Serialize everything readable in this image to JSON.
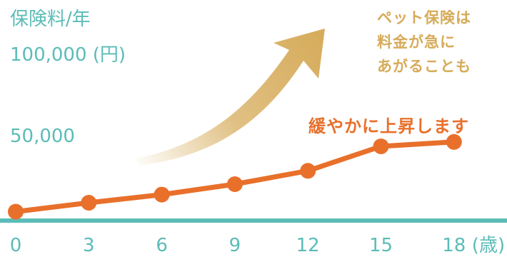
{
  "chart_data": {
    "type": "line",
    "title": "保険料/年",
    "ylabel": "",
    "xlabel": "(歳)",
    "x": [
      0,
      3,
      6,
      9,
      12,
      15,
      18
    ],
    "x_tick_labels": [
      "0",
      "3",
      "6",
      "9",
      "12",
      "15",
      "18"
    ],
    "y_tick_labels": [
      "100,000 (円)",
      "50,000"
    ],
    "y_ticks": [
      100000,
      50000
    ],
    "ylim": [
      0,
      125000
    ],
    "series": [
      {
        "values": [
          6000,
          12000,
          17500,
          24500,
          33500,
          50000,
          53000
        ]
      }
    ],
    "annotations": {
      "rising": "ペット保険は\n料金が急に\nあがることも",
      "gentle": "緩やかに上昇します"
    },
    "colors": {
      "line": "#e8702b",
      "axis": "#5bbcb7",
      "arrow": "#d6ab5a"
    }
  }
}
